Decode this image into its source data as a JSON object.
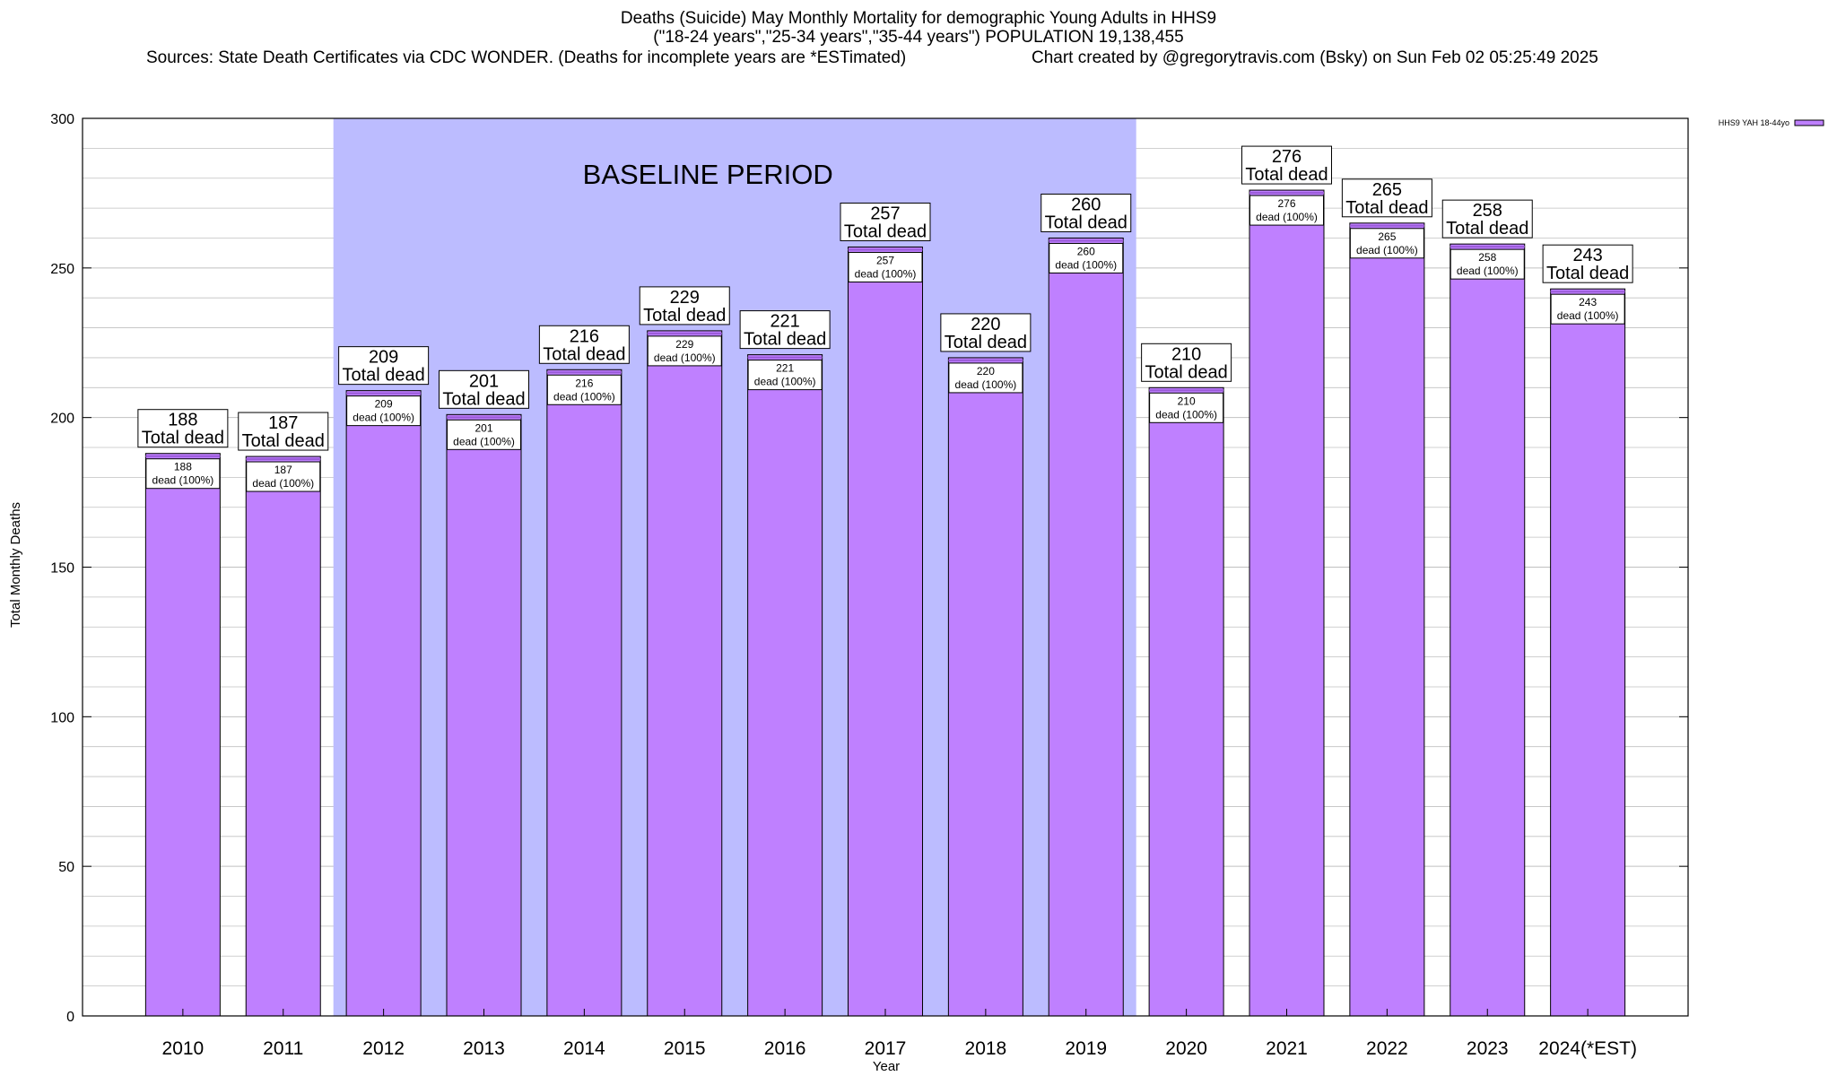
{
  "header": {
    "title_line1": "Deaths (Suicide) May Monthly Mortality for demographic Young Adults in HHS9",
    "title_line2": "(\"18-24 years\",\"25-34 years\",\"35-44 years\") POPULATION 19,138,455",
    "sources": "Sources: State Death Certificates via CDC WONDER. (Deaths for incomplete years are *ESTimated)",
    "credit": "Chart created by @gregorytravis.com (Bsky) on Sun Feb 02 05:25:49 2025"
  },
  "chart_data": {
    "type": "bar",
    "categories": [
      "2010",
      "2011",
      "2012",
      "2013",
      "2014",
      "2015",
      "2016",
      "2017",
      "2018",
      "2019",
      "2020",
      "2021",
      "2022",
      "2023",
      "2024(*EST)"
    ],
    "series": [
      {
        "name": "HHS9 YAH 18-44yo",
        "values": [
          188,
          187,
          209,
          201,
          216,
          229,
          221,
          257,
          220,
          260,
          210,
          276,
          265,
          258,
          243
        ]
      }
    ],
    "xlabel": "Year",
    "ylabel": "Total Monthly Deaths",
    "ylim": [
      0,
      300
    ],
    "yticks": [
      0,
      50,
      100,
      150,
      200,
      250,
      300
    ],
    "minor_grid_step": 10,
    "grid": true,
    "legend_position": "top-right",
    "annotations": {
      "baseline_label": "BASELINE PERIOD",
      "baseline_start": "2012",
      "baseline_end": "2019",
      "total_suffix": "Total dead",
      "dead_suffix": "dead (100%)"
    },
    "colors": {
      "bar_fill": "#bf80ff",
      "bar_top": "#9a5ad8",
      "baseline_shade": "#bcbcff",
      "grid": "#c0c0c0",
      "label_box": "#ffffff"
    }
  }
}
